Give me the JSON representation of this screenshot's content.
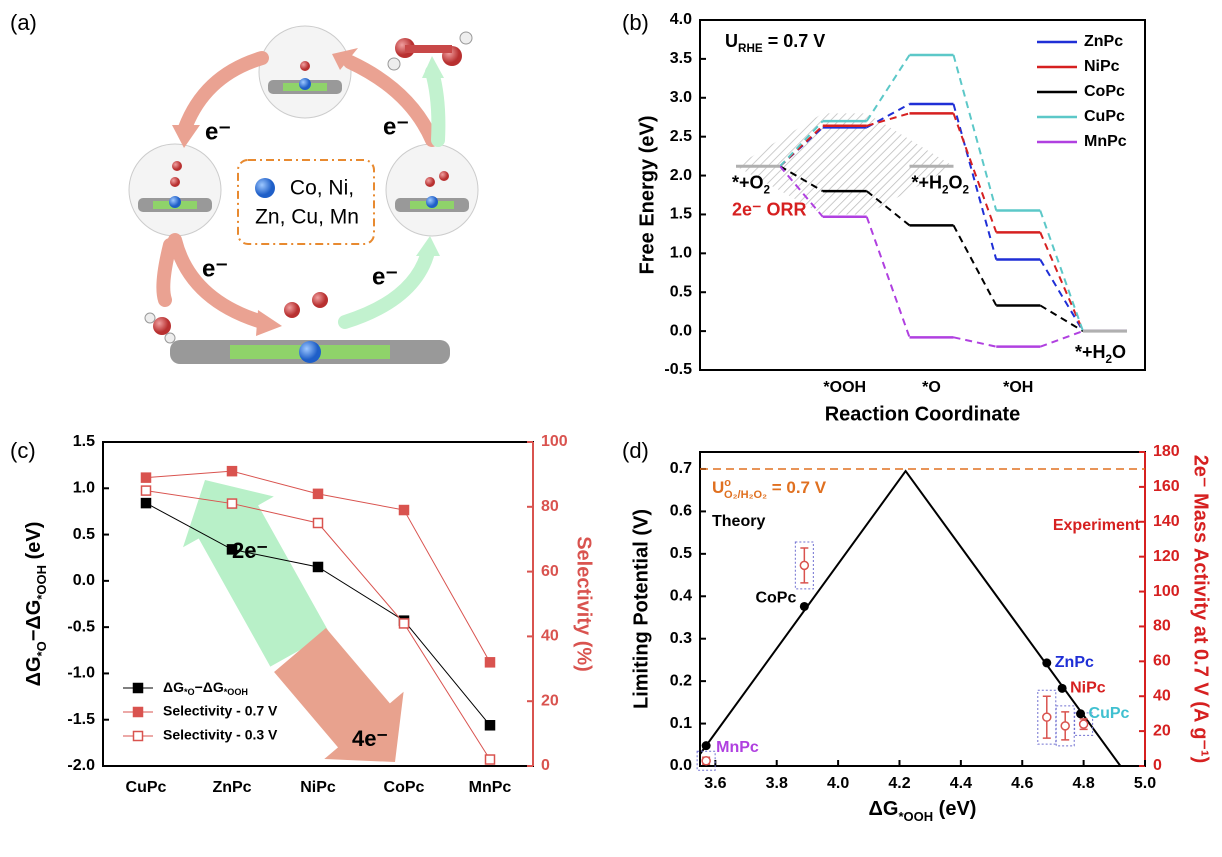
{
  "panel_labels": [
    "(a)",
    "(b)",
    "(c)",
    "(d)"
  ],
  "diagram": {
    "metals": [
      "Co, Ni,",
      "Zn, Cu, Mn"
    ],
    "electron_labels": [
      "e⁻",
      "e⁻",
      "e⁻",
      "e⁻"
    ]
  },
  "chart_data": [
    {
      "type": "energy",
      "categories": [
        null,
        "*OOH",
        "*O",
        "*OH",
        null
      ],
      "xlabel": "Reaction Coordinate",
      "ylabel": "Free Energy (eV)",
      "ylim": [
        -0.5,
        4.0
      ],
      "yticks": [
        -0.5,
        {
          "value": 0,
          "label": "0.0"
        },
        0.5,
        {
          "value": 1,
          "label": "1.0"
        },
        1.5,
        {
          "value": 2,
          "label": "2.0"
        },
        2.5,
        {
          "value": 3,
          "label": "3.0"
        },
        3.5,
        {
          "value": 4,
          "label": "4.0"
        }
      ],
      "series": [
        {
          "name": "ZnPc",
          "color": "#1f2fd6",
          "values": [
            2.12,
            2.62,
            2.92,
            0.92,
            0
          ]
        },
        {
          "name": "NiPc",
          "color": "#d62020",
          "values": [
            2.12,
            2.64,
            2.8,
            1.27,
            0
          ]
        },
        {
          "name": "CoPc",
          "color": "#000000",
          "values": [
            2.12,
            1.8,
            1.36,
            0.33,
            0
          ]
        },
        {
          "name": "CuPc",
          "color": "#5cc8c8",
          "values": [
            2.12,
            2.7,
            3.55,
            1.55,
            0
          ]
        },
        {
          "name": "MnPc",
          "color": "#b040e0",
          "values": [
            2.12,
            1.47,
            -0.08,
            -0.2,
            0
          ]
        }
      ],
      "reference": {
        "color": "#b0b0b0",
        "values": [
          2.12,
          null,
          2.12,
          null,
          0
        ]
      },
      "condition": [
        {
          "text": "U",
          "sub": "RHE"
        },
        {
          "text": " = 0.7 V"
        }
      ],
      "annotations": [
        {
          "color": "#000000",
          "parts": [
            {
              "text": "*+O",
              "sub": "2"
            }
          ]
        },
        {
          "color": "#000000",
          "parts": [
            {
              "text": "*+H",
              "sub": "2"
            },
            {
              "text": "O",
              "sub": "2"
            }
          ]
        },
        {
          "color": "#d62020",
          "parts": [
            {
              "text": "2e⁻ ORR"
            }
          ]
        },
        {
          "color": "#000000",
          "parts": [
            {
              "text": "*+H",
              "sub": "2"
            },
            {
              "text": "O"
            }
          ]
        }
      ],
      "legend": "upper right"
    },
    {
      "type": "line",
      "categories": [
        "CuPc",
        "ZnPc",
        "NiPc",
        "CoPc",
        "MnPc"
      ],
      "ylabel": [
        {
          "text": "ΔG",
          "sub": "*O"
        },
        {
          "text": "−ΔG",
          "sub": "*OOH"
        },
        {
          "text": " (eV)"
        }
      ],
      "y2label": "Selectivity (%)",
      "y2color": "#d9534f",
      "ylim": [
        -2.0,
        1.5
      ],
      "yticks": [
        {
          "value": -2,
          "label": "-2.0"
        },
        -1.5,
        {
          "value": -1,
          "label": "-1.0"
        },
        -0.5,
        {
          "value": 0,
          "label": "0.0"
        },
        0.5,
        {
          "value": 1,
          "label": "1.0"
        },
        1.5
      ],
      "y2lim": [
        0,
        100
      ],
      "y2ticks": [
        0,
        20,
        40,
        60,
        80,
        100
      ],
      "series": [
        {
          "name": [
            {
              "text": "ΔG",
              "sub": "*O"
            },
            {
              "text": "−ΔG",
              "sub": "*OOH"
            }
          ],
          "color": "#000000",
          "marker": "filled",
          "values": [
            0.84,
            0.34,
            0.15,
            -0.43,
            -1.56
          ]
        },
        {
          "name": "Selectivity - 0.7 V",
          "color": "#d9534f",
          "marker": "filled",
          "axis": "y2",
          "values": [
            89,
            91,
            84,
            79,
            32
          ]
        },
        {
          "name": "Selectivity - 0.3 V",
          "color": "#d9534f",
          "marker": "open",
          "axis": "y2",
          "values": [
            85,
            81,
            75,
            44,
            2
          ]
        }
      ],
      "legend": "lower left",
      "arrows": [
        {
          "label": "2e⁻",
          "color": "#b8f0c8"
        },
        {
          "label": "4e⁻",
          "color": "#e8a28e"
        }
      ]
    },
    {
      "type": "volcano",
      "xlabel": [
        {
          "text": "ΔG",
          "sub": "*OOH"
        },
        {
          "text": " (eV)"
        }
      ],
      "ylabel": "Limiting Potential (V)",
      "y2label": "2e⁻ Mass Activity at 0.7 V (A g⁻¹)",
      "y2color": "#d62020",
      "xlim": [
        3.55,
        5.0
      ],
      "xticks": [
        3.6,
        3.8,
        {
          "value": 4,
          "label": "4.0"
        },
        4.2,
        4.4,
        4.6,
        4.8,
        {
          "value": 5,
          "label": "5.0"
        }
      ],
      "ylim": [
        0,
        0.74
      ],
      "yticks": [
        {
          "value": 0,
          "label": "0.0"
        },
        0.1,
        0.2,
        0.3,
        0.4,
        0.5,
        0.6,
        0.7
      ],
      "y2lim": [
        0,
        180
      ],
      "y2ticks": [
        0,
        20,
        40,
        60,
        80,
        100,
        120,
        140,
        160,
        180
      ],
      "volcano": {
        "color": "#000000",
        "x": [
          3.55,
          4.22,
          4.92
        ],
        "values": [
          0.028,
          0.695,
          0
        ]
      },
      "theory": {
        "color": "#000000",
        "labels": [
          "MnPc",
          "CoPc",
          "ZnPc",
          "NiPc",
          "CuPc"
        ],
        "label_colors": [
          "#b040e0",
          "#000000",
          "#1f2fd6",
          "#d62020",
          "#40c0d0"
        ],
        "x": [
          3.57,
          3.89,
          4.68,
          4.73,
          4.79
        ],
        "values": [
          0.048,
          0.376,
          0.243,
          0.183,
          0.123
        ]
      },
      "experiment": {
        "axis": "y2",
        "color": "#d9534f",
        "x": [
          3.57,
          3.89,
          4.68,
          4.74,
          4.8
        ],
        "values": [
          3,
          115,
          28,
          23,
          24
        ],
        "errors": [
          2,
          10,
          12,
          8,
          3
        ]
      },
      "reference_line": {
        "value": 0.7,
        "color": "#e07020",
        "label": [
          {
            "text": "U",
            "sup": "o",
            "sub": "O₂/H₂O₂"
          },
          {
            "text": " = 0.7 V"
          }
        ]
      },
      "annotations": [
        {
          "text": "Theory",
          "color": "#000000"
        },
        {
          "text": "Experiment",
          "color": "#d62020"
        }
      ]
    }
  ]
}
